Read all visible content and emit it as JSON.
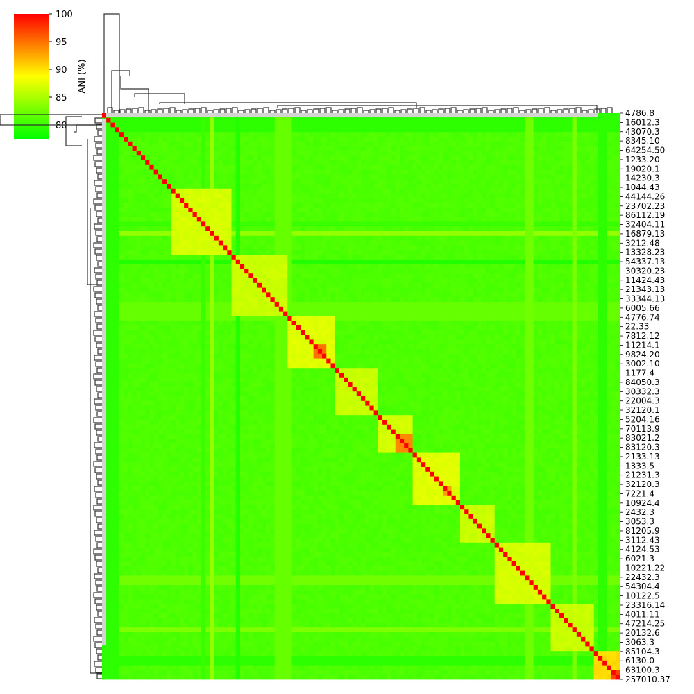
{
  "chart_data": {
    "type": "heatmap",
    "colorbar": {
      "label": "ANI (%)",
      "range": [
        77.5,
        100
      ],
      "ticks": [
        80,
        85,
        90,
        95,
        100
      ],
      "tick_labels": [
        "80",
        "85",
        "90",
        "95",
        "100"
      ],
      "colors": [
        "#00ff00",
        "#ffff00",
        "#ff0000"
      ]
    },
    "dendrogram_color": "#333333",
    "missing_color": "#d3d3d3",
    "diagonal_value": 100,
    "background_value": 80.5,
    "row_labels_visible": [
      "4786.8",
      "16012.3",
      "43070.3",
      "8345.10",
      "64254.50",
      "1233.20",
      "19020.1",
      "14230.3",
      "1044.43",
      "44144.26",
      "23702.23",
      "86112.19",
      "32404.11",
      "16879.13",
      "3212.48",
      "13328.23",
      "54337.13",
      "30320.23",
      "11424.43",
      "21343.13",
      "33344.13",
      "6005.66",
      "4776.74",
      "22.33",
      "7812.12",
      "11214.1",
      "9824.20",
      "3002.10",
      "1177.4",
      "84050.3",
      "30332.3",
      "22004.3",
      "32120.1",
      "5204.16",
      "70113.9",
      "83021.2",
      "83120.3",
      "2133.13",
      "1333.5",
      "21231.3",
      "32120.3",
      "7221.4",
      "10924.4",
      "2432.3",
      "3053.3",
      "81205.9",
      "3112.43",
      "4124.53",
      "6021.3",
      "10221.22",
      "22432.3",
      "54304.4",
      "10122.5",
      "23316.14",
      "4011.11",
      "47214.25",
      "20132.6",
      "3063.3",
      "85104.3",
      "6130.0",
      "63100.3",
      "257010.37"
    ],
    "blocks": [
      {
        "start": 0.135,
        "end": 0.25,
        "value": 86.5
      },
      {
        "start": 0.25,
        "end": 0.36,
        "value": 86
      },
      {
        "start": 0.36,
        "end": 0.45,
        "value": 87
      },
      {
        "start": 0.45,
        "end": 0.53,
        "value": 86
      },
      {
        "start": 0.53,
        "end": 0.6,
        "value": 86.5
      },
      {
        "start": 0.6,
        "end": 0.69,
        "value": 87
      },
      {
        "start": 0.69,
        "end": 0.76,
        "value": 86
      },
      {
        "start": 0.76,
        "end": 0.87,
        "value": 86.5
      },
      {
        "start": 0.87,
        "end": 0.95,
        "value": 86
      },
      {
        "start": 0.95,
        "end": 1.0,
        "value": 90
      }
    ],
    "hotspots": [
      {
        "start": 0.405,
        "end": 0.43,
        "value": 95
      },
      {
        "start": 0.57,
        "end": 0.6,
        "value": 94
      },
      {
        "start": 0.66,
        "end": 0.675,
        "value": 93
      },
      {
        "start": 0.85,
        "end": 0.86,
        "value": 95
      },
      {
        "start": 0.98,
        "end": 1.0,
        "value": 97
      }
    ],
    "stripes": [
      {
        "pos": 0.0,
        "width": 0.03,
        "value": 79.5
      },
      {
        "pos": 0.19,
        "width": 0.012,
        "value": 80
      },
      {
        "pos": 0.205,
        "width": 0.01,
        "value": 84
      },
      {
        "pos": 0.255,
        "width": 0.015,
        "value": 79
      },
      {
        "pos": 0.33,
        "width": 0.04,
        "value": 82
      },
      {
        "pos": 0.82,
        "width": 0.015,
        "value": 82.5
      },
      {
        "pos": 0.91,
        "width": 0.01,
        "value": 83
      },
      {
        "pos": 0.955,
        "width": 0.02,
        "value": 79.5
      }
    ]
  }
}
